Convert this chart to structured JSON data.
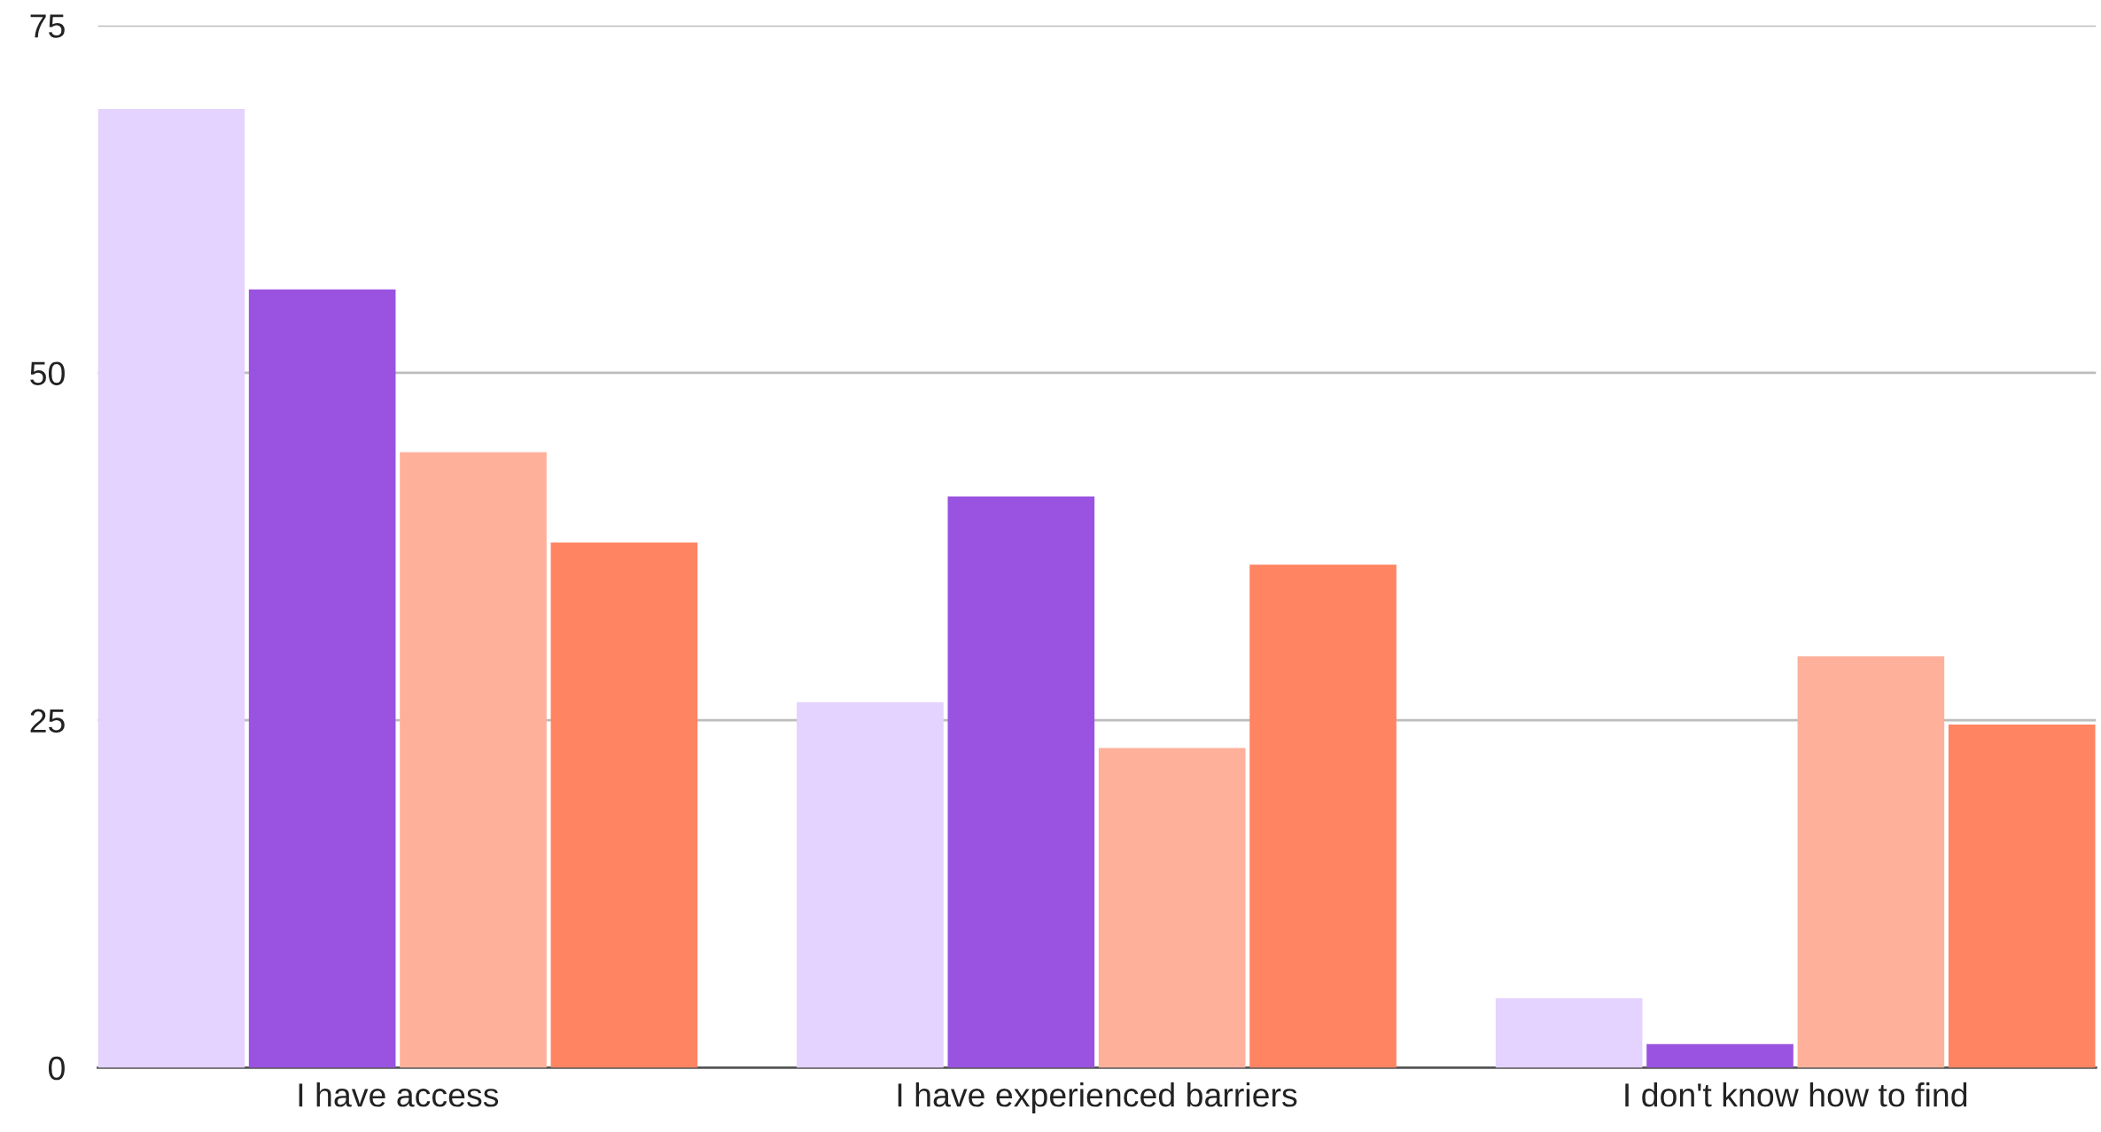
{
  "chart_data": {
    "type": "bar",
    "categories": [
      "I have access",
      "I have experienced barriers",
      "I don't know how to find"
    ],
    "series": [
      {
        "color": "#e4d2ff",
        "values": [
          69,
          26.3,
          5
        ]
      },
      {
        "color": "#9a52e0",
        "values": [
          56,
          41.1,
          1.7
        ]
      },
      {
        "color": "#ffb09b",
        "values": [
          44.3,
          23,
          29.6
        ]
      },
      {
        "color": "#ff8462",
        "values": [
          37.8,
          36.2,
          24.7
        ]
      }
    ],
    "ylim": [
      0,
      75
    ],
    "yticks": [
      0,
      25,
      50,
      75
    ],
    "grid": "y",
    "legend": false
  }
}
